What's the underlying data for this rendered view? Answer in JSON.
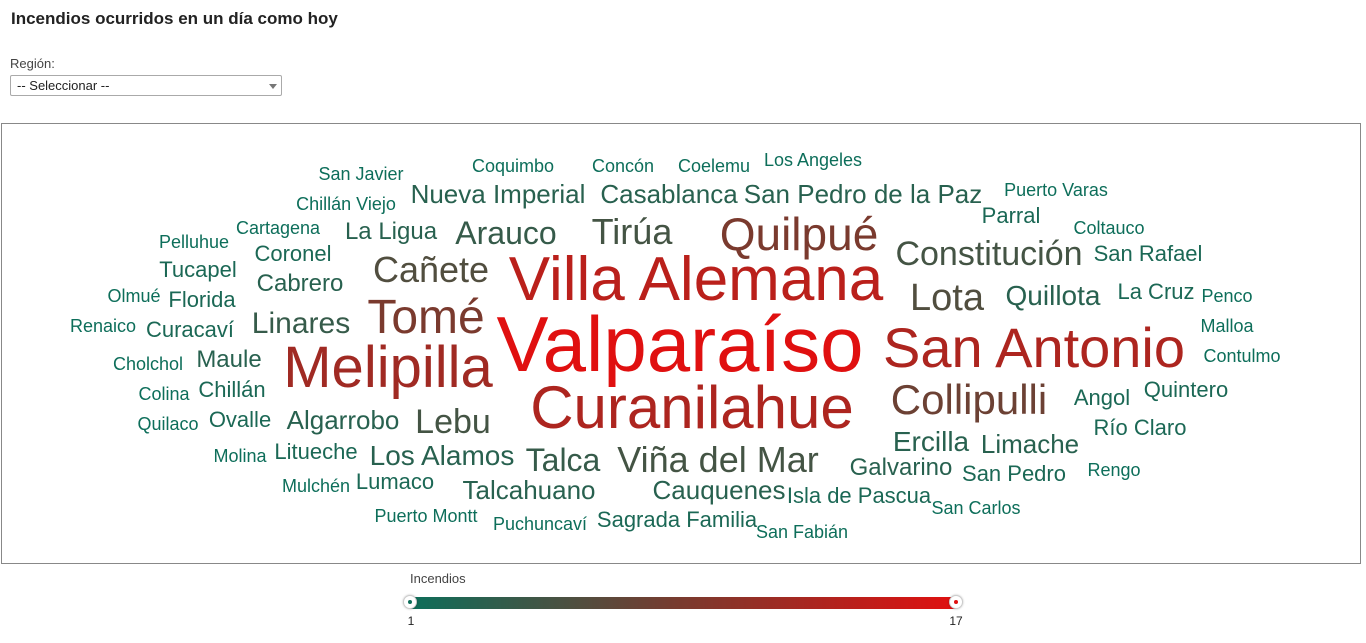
{
  "header": {
    "title": "Incendios ocurridos en un día como hoy"
  },
  "filter": {
    "label": "Región:",
    "selected": "-- Seleccionar --"
  },
  "legend": {
    "title": "Incendios",
    "min": "1",
    "max": "17",
    "color_min": "#0d6e5a",
    "color_max": "#e01010"
  },
  "words": [
    {
      "text": "Valparaíso",
      "count": 17
    },
    {
      "text": "Villa Alemana",
      "count": 14
    },
    {
      "text": "San Antonio",
      "count": 13
    },
    {
      "text": "Curanilahue",
      "count": 13
    },
    {
      "text": "Melipilla",
      "count": 12
    },
    {
      "text": "Tomé",
      "count": 9
    },
    {
      "text": "Quilpué",
      "count": 9
    },
    {
      "text": "Collipulli",
      "count": 8
    },
    {
      "text": "Cañete",
      "count": 6
    },
    {
      "text": "Lota",
      "count": 6
    },
    {
      "text": "Constitución",
      "count": 5
    },
    {
      "text": "Viña del Mar",
      "count": 5
    },
    {
      "text": "Tirúa",
      "count": 5
    },
    {
      "text": "Lebu",
      "count": 5
    },
    {
      "text": "Arauco",
      "count": 4
    },
    {
      "text": "Talca",
      "count": 4
    },
    {
      "text": "Linares",
      "count": 4
    },
    {
      "text": "Los Alamos",
      "count": 3
    },
    {
      "text": "Quillota",
      "count": 3
    },
    {
      "text": "Ercilla",
      "count": 3
    },
    {
      "text": "Nueva Imperial",
      "count": 3
    },
    {
      "text": "San Pedro de la Paz",
      "count": 3
    },
    {
      "text": "Casablanca",
      "count": 3
    },
    {
      "text": "Algarrobo",
      "count": 3
    },
    {
      "text": "Limache",
      "count": 3
    },
    {
      "text": "Talcahuano",
      "count": 3
    },
    {
      "text": "Cauquenes",
      "count": 3
    },
    {
      "text": "Galvarino",
      "count": 3
    },
    {
      "text": "Maule",
      "count": 3
    },
    {
      "text": "Cabrero",
      "count": 3
    },
    {
      "text": "La Ligua",
      "count": 3
    },
    {
      "text": "Sagrada Familia",
      "count": 2
    },
    {
      "text": "Isla de Pascua",
      "count": 2
    },
    {
      "text": "San Pedro",
      "count": 2
    },
    {
      "text": "Río Claro",
      "count": 2
    },
    {
      "text": "Quintero",
      "count": 2
    },
    {
      "text": "Angol",
      "count": 2
    },
    {
      "text": "La Cruz",
      "count": 2
    },
    {
      "text": "San Rafael",
      "count": 2
    },
    {
      "text": "Parral",
      "count": 2
    },
    {
      "text": "Coronel",
      "count": 2
    },
    {
      "text": "Tucapel",
      "count": 2
    },
    {
      "text": "Florida",
      "count": 2
    },
    {
      "text": "Curacaví",
      "count": 2
    },
    {
      "text": "Chillán",
      "count": 2
    },
    {
      "text": "Ovalle",
      "count": 2
    },
    {
      "text": "Litueche",
      "count": 2
    },
    {
      "text": "Lumaco",
      "count": 2
    },
    {
      "text": "San Javier",
      "count": 1
    },
    {
      "text": "Chillán Viejo",
      "count": 1
    },
    {
      "text": "Cartagena",
      "count": 1
    },
    {
      "text": "Pelluhue",
      "count": 1
    },
    {
      "text": "Olmué",
      "count": 1
    },
    {
      "text": "Renaico",
      "count": 1
    },
    {
      "text": "Cholchol",
      "count": 1
    },
    {
      "text": "Colina",
      "count": 1
    },
    {
      "text": "Quilaco",
      "count": 1
    },
    {
      "text": "Molina",
      "count": 1
    },
    {
      "text": "Mulchén",
      "count": 1
    },
    {
      "text": "Puerto Montt",
      "count": 1
    },
    {
      "text": "Puchuncaví",
      "count": 1
    },
    {
      "text": "San Fabián",
      "count": 1
    },
    {
      "text": "San Carlos",
      "count": 1
    },
    {
      "text": "Rengo",
      "count": 1
    },
    {
      "text": "Contulmo",
      "count": 1
    },
    {
      "text": "Malloa",
      "count": 1
    },
    {
      "text": "Penco",
      "count": 1
    },
    {
      "text": "Coltauco",
      "count": 1
    },
    {
      "text": "Puerto Varas",
      "count": 1
    },
    {
      "text": "Los Angeles",
      "count": 1
    },
    {
      "text": "Coelemu",
      "count": 1
    },
    {
      "text": "Concón",
      "count": 1
    },
    {
      "text": "Coquimbo",
      "count": 1
    }
  ]
}
